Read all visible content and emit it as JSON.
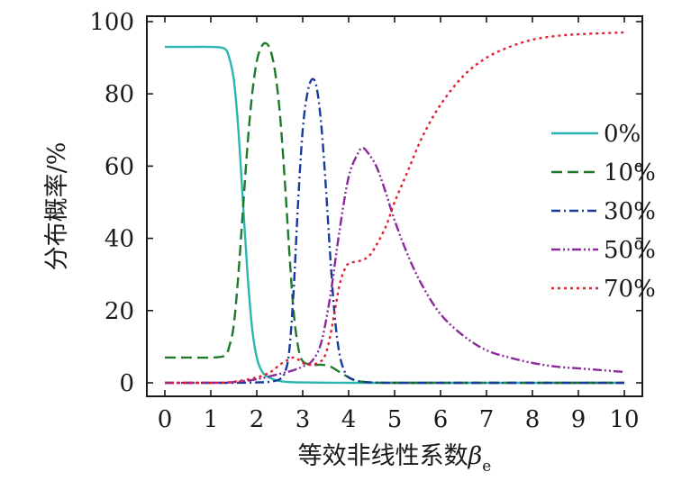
{
  "chart_data": {
    "type": "line",
    "xlabel": "等效非线性系数",
    "xlabel_symbol": "β",
    "xlabel_subscript": "e",
    "ylabel": "分布概率/%",
    "xlim": [
      0,
      10
    ],
    "ylim": [
      0,
      100
    ],
    "xticks": [
      "0",
      "1",
      "2",
      "3",
      "4",
      "5",
      "6",
      "7",
      "8",
      "9",
      "10"
    ],
    "yticks": [
      "0",
      "20",
      "40",
      "60",
      "80",
      "100"
    ],
    "grid": false,
    "legend_position": "right",
    "series": [
      {
        "name": "0%",
        "color": "#2bb5b0",
        "dash": "solid",
        "x": [
          0,
          0.5,
          1.0,
          1.3,
          1.4,
          1.5,
          1.6,
          1.7,
          1.8,
          1.9,
          2.0,
          2.1,
          2.2,
          2.4,
          2.6,
          3.0,
          4.0,
          5.0,
          6.0,
          7.0,
          8.0,
          9.0,
          10.0
        ],
        "y": [
          93,
          93,
          93,
          92.5,
          90,
          84,
          70,
          50,
          30,
          15,
          7,
          3.5,
          2,
          0.8,
          0.3,
          0.1,
          0,
          0,
          0,
          0,
          0,
          0,
          0
        ]
      },
      {
        "name": "10%",
        "color": "#1e7a2a",
        "dash": "dashed",
        "x": [
          0,
          0.5,
          1.0,
          1.3,
          1.4,
          1.5,
          1.6,
          1.7,
          1.8,
          1.9,
          2.0,
          2.1,
          2.2,
          2.3,
          2.4,
          2.5,
          2.6,
          2.7,
          2.8,
          2.9,
          3.0,
          3.2,
          3.4,
          3.6,
          3.8,
          4.0,
          4.2,
          4.5,
          5.0,
          6.0,
          7.0,
          8.0,
          9.0,
          10.0
        ],
        "y": [
          7,
          7,
          7,
          7.5,
          10,
          16,
          30,
          48,
          66,
          80,
          89,
          93,
          94,
          92,
          86,
          75,
          58,
          38,
          20,
          10,
          6,
          5,
          5,
          4.5,
          3,
          1.5,
          0.5,
          0.1,
          0,
          0,
          0,
          0,
          0,
          0
        ]
      },
      {
        "name": "30%",
        "color": "#1a3a9a",
        "dash": "dashdot",
        "x": [
          0,
          1.0,
          1.5,
          2.0,
          2.3,
          2.5,
          2.6,
          2.7,
          2.8,
          2.9,
          3.0,
          3.1,
          3.2,
          3.3,
          3.4,
          3.5,
          3.6,
          3.7,
          3.8,
          3.9,
          4.0,
          4.2,
          4.5,
          5.0,
          6.0,
          7.0,
          8.0,
          9.0,
          10.0
        ],
        "y": [
          0,
          0,
          0,
          0.1,
          0.3,
          1,
          2.5,
          8,
          25,
          50,
          70,
          80,
          84,
          82,
          72,
          55,
          35,
          18,
          8,
          3.5,
          1.5,
          0.5,
          0.1,
          0,
          0,
          0,
          0,
          0,
          0
        ]
      },
      {
        "name": "50%",
        "color": "#8a2a9a",
        "dash": "dashdotdot",
        "x": [
          0,
          1.0,
          1.5,
          2.0,
          2.5,
          2.8,
          3.0,
          3.2,
          3.4,
          3.6,
          3.8,
          4.0,
          4.2,
          4.3,
          4.4,
          4.6,
          4.8,
          5.0,
          5.3,
          5.6,
          6.0,
          6.5,
          7.0,
          7.5,
          8.0,
          8.5,
          9.0,
          9.5,
          10.0
        ],
        "y": [
          0,
          0,
          0.2,
          1,
          2.5,
          3.5,
          4.5,
          6,
          11,
          24,
          42,
          57,
          63.5,
          65,
          64,
          60,
          53,
          45,
          35,
          27,
          19,
          13,
          9,
          7,
          5.5,
          4.5,
          4,
          3.5,
          3
        ]
      },
      {
        "name": "70%",
        "color": "#e02030",
        "dash": "dotted",
        "x": [
          0,
          1.0,
          1.5,
          2.0,
          2.3,
          2.5,
          2.7,
          2.8,
          2.9,
          3.0,
          3.2,
          3.4,
          3.5,
          3.6,
          3.7,
          3.8,
          3.9,
          4.0,
          4.3,
          4.5,
          4.8,
          5.0,
          5.3,
          5.6,
          6.0,
          6.5,
          7.0,
          7.5,
          8.0,
          8.5,
          9.0,
          10.0
        ],
        "y": [
          0,
          0,
          0.3,
          1.5,
          3,
          5,
          6.5,
          7,
          6.5,
          5.5,
          5,
          6,
          8,
          13,
          20,
          27,
          31,
          33,
          34,
          36,
          43,
          50,
          59,
          68,
          77,
          85,
          90,
          93,
          95,
          96,
          96.5,
          97
        ]
      }
    ]
  }
}
